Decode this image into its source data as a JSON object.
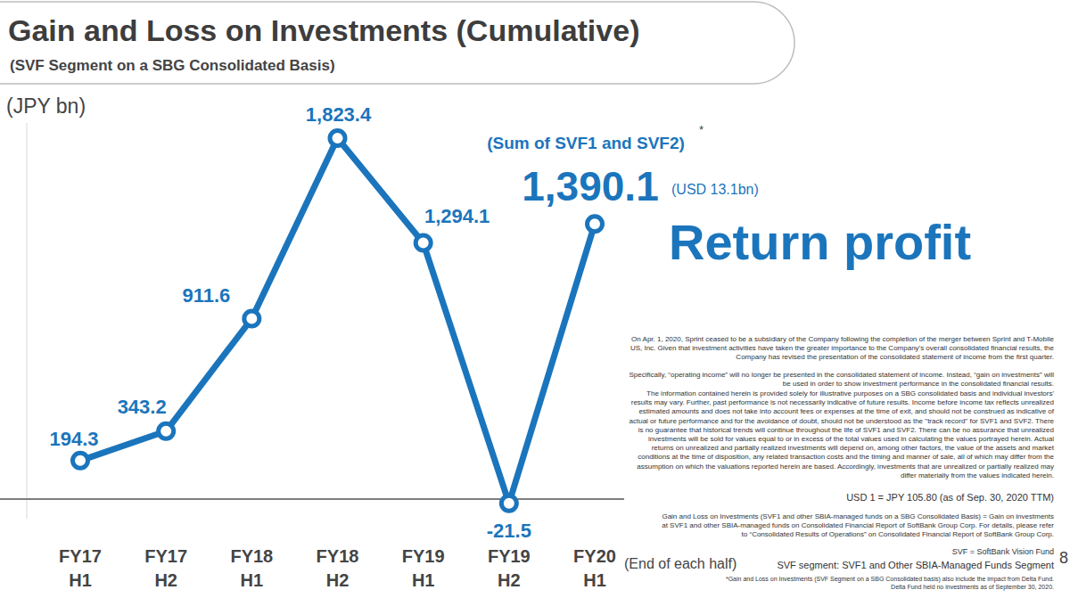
{
  "chart_data": {
    "type": "line",
    "title": "Gain and Loss on Investments (Cumulative)",
    "subtitle": "(SVF Segment on a SBG Consolidated Basis)",
    "ylabel": "(JPY bn)",
    "xlabel": "(End of each half)",
    "categories": [
      "FY17\nH1",
      "FY17\nH2",
      "FY18\nH1",
      "FY18\nH2",
      "FY19\nH1",
      "FY19\nH2",
      "FY20\nH1"
    ],
    "values": [
      194.3,
      343.2,
      911.6,
      1823.4,
      1294.1,
      -21.5,
      1390.1
    ],
    "value_labels": [
      "194.3",
      "343.2",
      "911.6",
      "1,823.4",
      "1,294.1",
      "-21.5",
      "1,390.1"
    ],
    "color": "#1b75bc",
    "marker": "circle",
    "data_labels": true,
    "tick_labels": "x",
    "grid": false,
    "ylim": [
      -100,
      1900
    ],
    "yticks": [
      0
    ],
    "annotations": [
      "(Sum of SVF1 and SVF2)",
      "*",
      "(USD 13.1bn)",
      "Return profit",
      "On Apr. 1, 2020, Sprint ceased to be a subsidiary of the Company following the completion of the merger between Sprint and T-Mobile US, Inc. Given that investment activities have taken the greater importance to the Company's overall consolidated financial results, the Company has revised the presentation of the consolidated statement of income from the first quarter.",
      "Specifically, “operating income” will no longer be presented in the consolidated statement of income. Instead, “gain on investments” will be used in order to show investment performance in the consolidated financial results.",
      "The information contained herein is provided solely for illustrative purposes on a SBG consolidated basis and individual investors' results may vary. Further, past performance is not necessarily indicative of future results. Income before income tax reflects unrealized estimated amounts and does not take into account fees or expenses at the time of exit, and should not be construed as indicative of actual or future performance and for the avoidance of doubt, should not be understood as the \"track record\" for SVF1 and SVF2. There is no guarantee that historical trends will continue throughout the life of SVF1 and SVF2. There can be no assurance that unrealized investments will be sold for values equal to or in excess of the total values used in calculating the values portrayed herein. Actual returns on unrealized and partially realized investments will depend on, among other factors, the value of the assets and market conditions at the time of disposition, any related transaction costs and the timing and manner of sale, all of which may differ from the assumption on which the valuations reported herein are based. Accordingly, investments that are unrealized or partially realized may differ materially from the values indicated herein.",
      "USD 1 = JPY 105.80 (as of Sep. 30, 2020 TTM)",
      "Gain and Loss on Investments (SVF1 and other SBIA-managed funds on a SBG Consolidated Basis) = Gain on investments at SVF1 and other SBIA-managed funds on Consolidated Financial Report of SoftBank Group Corp. For details, please refer to “Consolidated Results of Operations” on Consolidated Financial Report of SoftBank Group Corp.",
      "SVF = SoftBank Vision Fund",
      "SVF segment: SVF1 and Other SBIA-Managed Funds Segment",
      "*Gain and Loss on Investments (SVF Segment on a SBG Consolidated basis) also include the impact from Delta Fund. Delta Fund held no investments as of September 30, 2020.",
      "8"
    ]
  }
}
